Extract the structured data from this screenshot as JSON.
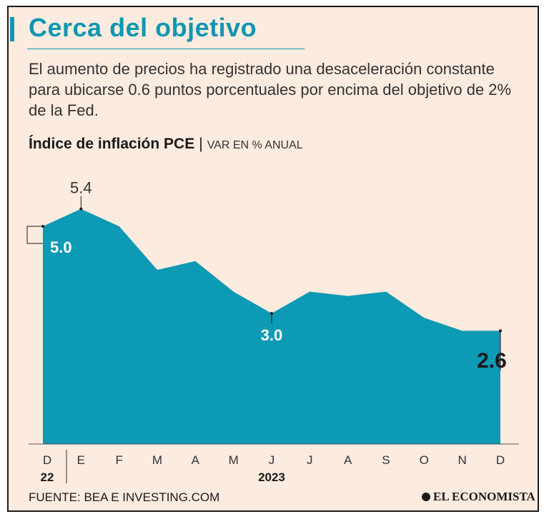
{
  "header": {
    "title": "Cerca del objetivo",
    "subtitle": "El aumento de precios ha registrado una desaceleración constante para ubicarse 0.6 puntos porcentuales por encima del objetivo de 2% de la Fed."
  },
  "chart_heading": {
    "bold": "Índice de inflación PCE",
    "separator": "|",
    "unit": "VAR EN % ANUAL"
  },
  "chart_data": {
    "type": "area",
    "categories": [
      "D",
      "E",
      "F",
      "M",
      "A",
      "M",
      "J",
      "J",
      "A",
      "S",
      "O",
      "N",
      "D"
    ],
    "values": [
      5.0,
      5.4,
      5.0,
      4.0,
      4.2,
      3.5,
      3.0,
      3.5,
      3.4,
      3.5,
      2.9,
      2.6,
      2.6
    ],
    "year_labels": [
      {
        "label": "22",
        "index": 0
      },
      {
        "label": "2023",
        "index": 6
      }
    ],
    "annotations": [
      {
        "index": 0,
        "text": "5.0"
      },
      {
        "index": 1,
        "text": "5.4"
      },
      {
        "index": 6,
        "text": "3.0"
      },
      {
        "index": 12,
        "text": "2.6"
      }
    ],
    "ylim": [
      0,
      6
    ],
    "fill_color": "#0d9ab5",
    "grid": false,
    "legend": "none"
  },
  "footer": {
    "source": "FUENTE: BEA E INVESTING.COM",
    "logo": "EL ECONOMISTA"
  }
}
